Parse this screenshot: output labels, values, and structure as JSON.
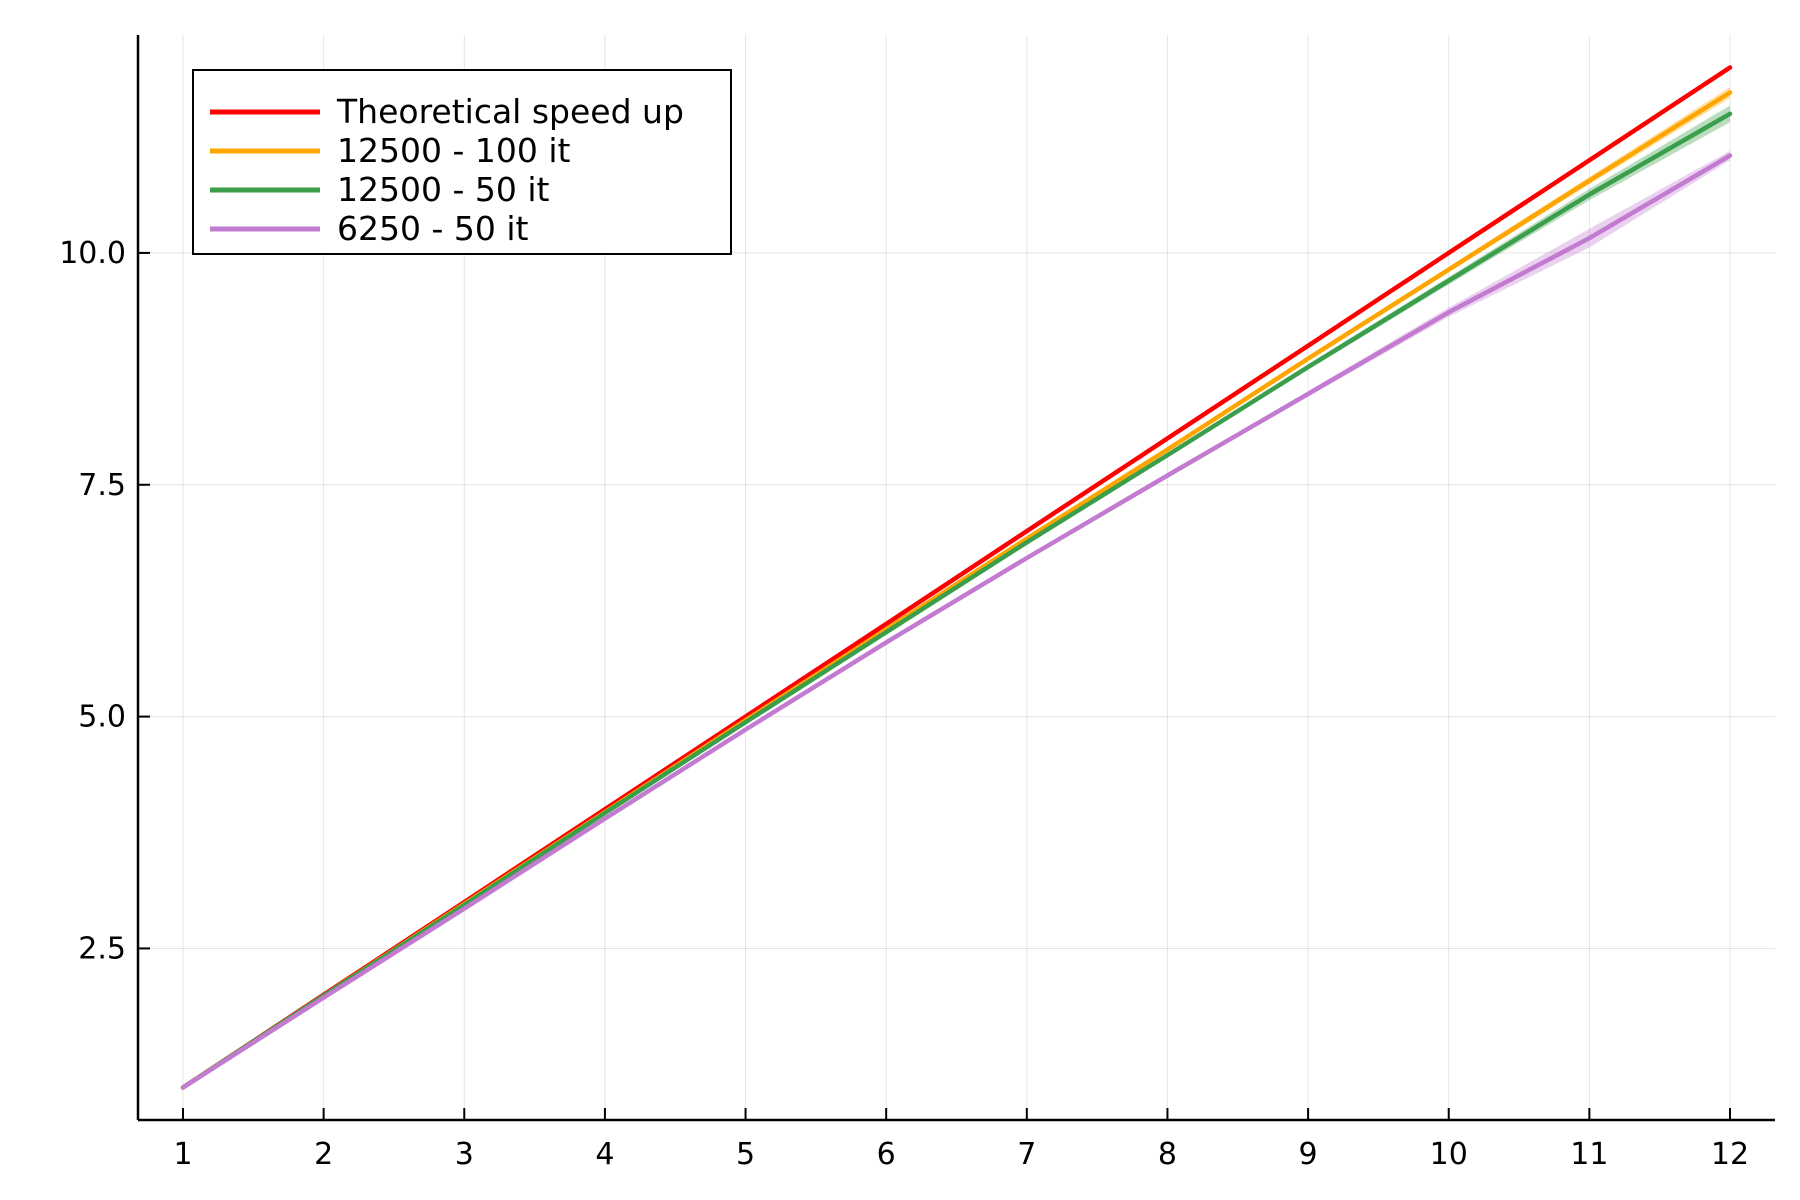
{
  "chart_data": {
    "type": "line",
    "title": "",
    "xlabel": "",
    "ylabel": "",
    "xlim": [
      0.68,
      12.32
    ],
    "ylim": [
      0.65,
      12.35
    ],
    "x_ticks": [
      1,
      2,
      3,
      4,
      5,
      6,
      7,
      8,
      9,
      10,
      11,
      12
    ],
    "x_tick_labels": [
      "1",
      "2",
      "3",
      "4",
      "5",
      "6",
      "7",
      "8",
      "9",
      "10",
      "11",
      "12"
    ],
    "y_ticks": [
      2.5,
      5.0,
      7.5,
      10.0
    ],
    "y_tick_labels": [
      "2.5",
      "5.0",
      "7.5",
      "10.0"
    ],
    "grid": true,
    "legend_position": "top-left",
    "x": [
      1,
      2,
      3,
      4,
      5,
      6,
      7,
      8,
      9,
      10,
      11,
      12
    ],
    "series": [
      {
        "name": "Theoretical speed up",
        "color": "#ff0000",
        "values": [
          1,
          2,
          3,
          4,
          5,
          6,
          7,
          8,
          9,
          10,
          11,
          12
        ],
        "band": null
      },
      {
        "name": "12500 - 100 it",
        "color": "#ffa500",
        "values": [
          1,
          1.99,
          2.98,
          3.97,
          4.96,
          5.94,
          6.92,
          7.88,
          8.86,
          9.82,
          10.78,
          11.73
        ],
        "band": [
          0,
          0,
          0,
          0,
          0,
          0.005,
          0.01,
          0.015,
          0.02,
          0.03,
          0.04,
          0.06
        ]
      },
      {
        "name": "12500 - 50 it",
        "color": "#3a9e4a",
        "values": [
          1,
          1.99,
          2.97,
          3.96,
          4.94,
          5.91,
          6.88,
          7.82,
          8.77,
          9.7,
          10.63,
          11.5
        ],
        "band": [
          0,
          0,
          0,
          0,
          0,
          0.005,
          0.01,
          0.02,
          0.03,
          0.04,
          0.06,
          0.09
        ]
      },
      {
        "name": "6250 - 50 it",
        "color": "#c27bd0",
        "values": [
          1,
          1.97,
          2.93,
          3.9,
          4.86,
          5.8,
          6.71,
          7.6,
          8.48,
          9.36,
          10.16,
          11.05
        ],
        "band": [
          0,
          0,
          0,
          0,
          0,
          0.005,
          0.01,
          0.02,
          0.03,
          0.05,
          0.1,
          0.05
        ]
      }
    ]
  }
}
